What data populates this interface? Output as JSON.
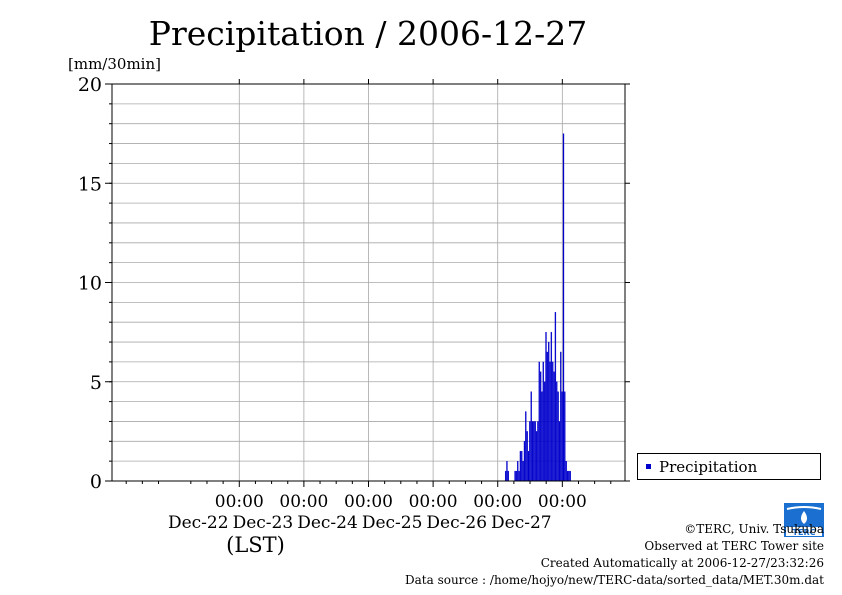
{
  "chart_data": {
    "type": "bar",
    "title": "Precipitation / 2006-12-27",
    "ylabel": "[mm/30min]",
    "xlabel": "(LST)",
    "ylim": [
      0,
      20
    ],
    "yticks": [
      0,
      5,
      10,
      15,
      20
    ],
    "y_minor_step": 1,
    "xlim_days": [
      -0.97,
      6.97
    ],
    "day_ticks": [
      {
        "day": 1,
        "time": "00:00",
        "date": "Dec-22"
      },
      {
        "day": 2,
        "time": "00:00",
        "date": "Dec-23"
      },
      {
        "day": 3,
        "time": "00:00",
        "date": "Dec-24"
      },
      {
        "day": 4,
        "time": "00:00",
        "date": "Dec-25"
      },
      {
        "day": 5,
        "time": "00:00",
        "date": "Dec-26"
      },
      {
        "day": 6,
        "time": "00:00",
        "date": "Dec-27"
      }
    ],
    "legend": "top-right-outside",
    "grid": true,
    "series": [
      {
        "name": "Precipitation",
        "color": "#0000cc",
        "points": [
          {
            "t": "2006-12-26 03:00",
            "v": 0.5
          },
          {
            "t": "2006-12-26 03:30",
            "v": 1.0
          },
          {
            "t": "2006-12-26 04:00",
            "v": 0.5
          },
          {
            "t": "2006-12-26 06:30",
            "v": 0.5
          },
          {
            "t": "2006-12-26 07:00",
            "v": 0.5
          },
          {
            "t": "2006-12-26 07:30",
            "v": 1.0
          },
          {
            "t": "2006-12-26 08:00",
            "v": 0.5
          },
          {
            "t": "2006-12-26 08:30",
            "v": 1.5
          },
          {
            "t": "2006-12-26 09:00",
            "v": 1.5
          },
          {
            "t": "2006-12-26 09:30",
            "v": 1.0
          },
          {
            "t": "2006-12-26 10:00",
            "v": 2.0
          },
          {
            "t": "2006-12-26 10:30",
            "v": 3.5
          },
          {
            "t": "2006-12-26 11:00",
            "v": 2.5
          },
          {
            "t": "2006-12-26 11:30",
            "v": 1.5
          },
          {
            "t": "2006-12-26 12:00",
            "v": 3.0
          },
          {
            "t": "2006-12-26 12:30",
            "v": 4.5
          },
          {
            "t": "2006-12-26 13:00",
            "v": 3.0
          },
          {
            "t": "2006-12-26 13:30",
            "v": 3.0
          },
          {
            "t": "2006-12-26 14:00",
            "v": 3.0
          },
          {
            "t": "2006-12-26 14:30",
            "v": 2.5
          },
          {
            "t": "2006-12-26 15:00",
            "v": 3.0
          },
          {
            "t": "2006-12-26 15:30",
            "v": 6.0
          },
          {
            "t": "2006-12-26 16:00",
            "v": 5.5
          },
          {
            "t": "2006-12-26 16:30",
            "v": 4.5
          },
          {
            "t": "2006-12-26 17:00",
            "v": 6.0
          },
          {
            "t": "2006-12-26 17:30",
            "v": 5.0
          },
          {
            "t": "2006-12-26 18:00",
            "v": 7.5
          },
          {
            "t": "2006-12-26 18:30",
            "v": 6.5
          },
          {
            "t": "2006-12-26 19:00",
            "v": 7.0
          },
          {
            "t": "2006-12-26 19:30",
            "v": 6.0
          },
          {
            "t": "2006-12-26 20:00",
            "v": 7.5
          },
          {
            "t": "2006-12-26 20:30",
            "v": 6.0
          },
          {
            "t": "2006-12-26 21:00",
            "v": 5.5
          },
          {
            "t": "2006-12-26 21:30",
            "v": 8.5
          },
          {
            "t": "2006-12-26 22:00",
            "v": 5.0
          },
          {
            "t": "2006-12-26 22:30",
            "v": 4.5
          },
          {
            "t": "2006-12-26 23:00",
            "v": 3.0
          },
          {
            "t": "2006-12-26 23:30",
            "v": 6.5
          },
          {
            "t": "2006-12-27 00:00",
            "v": 4.5
          },
          {
            "t": "2006-12-27 00:30",
            "v": 17.5
          },
          {
            "t": "2006-12-27 01:00",
            "v": 4.5
          },
          {
            "t": "2006-12-27 01:30",
            "v": 1.0
          },
          {
            "t": "2006-12-27 02:00",
            "v": 0.5
          },
          {
            "t": "2006-12-27 02:30",
            "v": 0.5
          },
          {
            "t": "2006-12-27 03:00",
            "v": 0.5
          }
        ]
      }
    ]
  },
  "footer": {
    "copyright": "©TERC, Univ. Tsukuba",
    "observed": "Observed at TERC Tower site",
    "created": "Created Automatically at 2006-12-27/23:32:26",
    "source": "Data source : /home/hojyo/new/TERC-data/sorted_data/MET.30m.dat",
    "logo_text": "TERC"
  }
}
